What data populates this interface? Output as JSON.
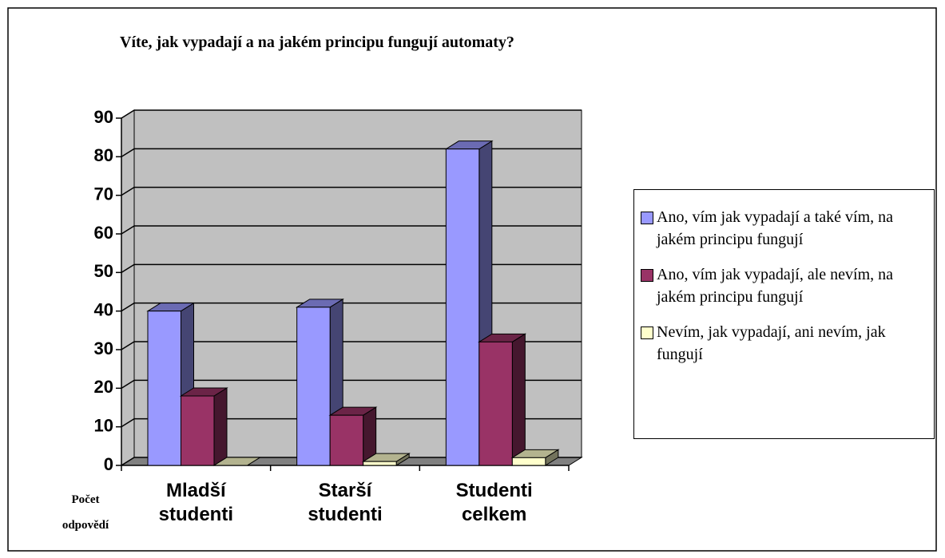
{
  "chart_data": {
    "type": "bar3d",
    "title": "Víte, jak vypadají a na jakém principu fungují automaty?",
    "y_label": "Počet odpovědí",
    "categories": [
      "Mladší studenti",
      "Starší studenti",
      "Studenti celkem"
    ],
    "series": [
      {
        "name": "Ano, vím jak vypadají a také vím, na jakém principu fungují",
        "color": "#9999ff",
        "values": [
          40,
          41,
          82
        ]
      },
      {
        "name": "Ano, vím  jak vypadají, ale nevím, na jakém principu fungují",
        "color": "#993366",
        "values": [
          18,
          13,
          32
        ]
      },
      {
        "name": "Nevím, jak vypadají, ani nevím, jak fungují",
        "color": "#ffffcc",
        "values": [
          0,
          1,
          2
        ]
      }
    ],
    "ylim": [
      0,
      90
    ],
    "yticks": [
      0,
      10,
      20,
      30,
      40,
      50,
      60,
      70,
      80,
      90
    ],
    "grid": true,
    "legend": "right"
  }
}
